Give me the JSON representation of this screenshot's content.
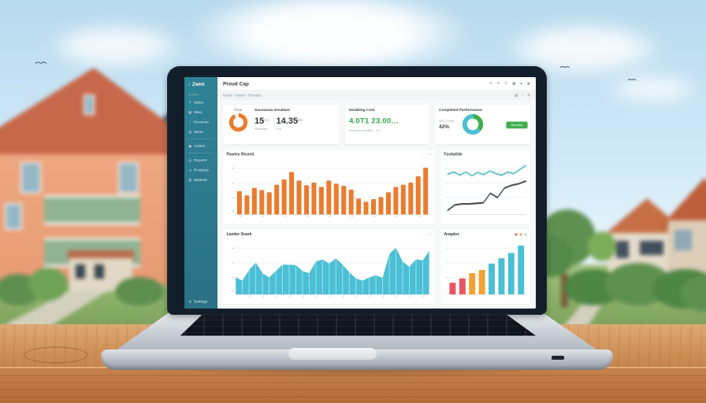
{
  "header": {
    "title": "Proud Cap",
    "icons": [
      {
        "name": "edit-icon",
        "glyph": "✎"
      },
      {
        "name": "refresh-icon",
        "glyph": "⟳"
      },
      {
        "name": "notifications-icon",
        "glyph": "✆"
      },
      {
        "name": "apps-icon",
        "glyph": "▣"
      },
      {
        "name": "status-dot-icon",
        "glyph": "●"
      },
      {
        "name": "profile-icon",
        "glyph": "◉"
      }
    ]
  },
  "breadcrumb": {
    "path": "Home › Panel › Threads",
    "icons": [
      {
        "name": "grid-view-icon",
        "glyph": "▦"
      },
      {
        "name": "history-icon",
        "glyph": "◔"
      },
      {
        "name": "sort-icon",
        "glyph": "⇅"
      }
    ]
  },
  "sidebar": {
    "brand": "Zwivt",
    "brand_icon_glyph": "⌂",
    "section_label": "MENU",
    "sections": [
      {
        "items": [
          {
            "label": "Sales",
            "icon": "pen-icon",
            "glyph": "✎"
          },
          {
            "label": "Sites",
            "icon": "grid-icon",
            "glyph": "▦"
          },
          {
            "label": "Revenue",
            "icon": "clock-icon",
            "glyph": "◔"
          },
          {
            "label": "Items",
            "icon": "layers-icon",
            "glyph": "▤"
          }
        ]
      },
      {
        "items": [
          {
            "label": "Orders",
            "icon": "box-icon",
            "glyph": "▣"
          }
        ]
      },
      {
        "items": [
          {
            "label": "Reports",
            "icon": "target-icon",
            "glyph": "◎"
          },
          {
            "label": "Products",
            "icon": "square-icon",
            "glyph": "◻"
          },
          {
            "label": "Markets",
            "icon": "chart-icon",
            "glyph": "▥"
          }
        ]
      }
    ],
    "bottom_item": {
      "label": "Settings",
      "icon": "gear-icon",
      "glyph": "⚙"
    }
  },
  "kpis": {
    "card1": {
      "donut_label": "Flour",
      "heading": "Saustanav Emaliant",
      "metrics": [
        {
          "value": "15",
          "suffix": "2:1",
          "label": "Finances"
        },
        {
          "value": "14.35",
          "suffix": "km",
          "label": "Y/A"
        }
      ]
    },
    "card2": {
      "heading": "Doubling Cost",
      "value": "4.0T1 23.00…",
      "subtext": "Finances median · 1/3"
    },
    "card3": {
      "heading": "Completed Performance",
      "small_label": "GET-COM",
      "value": "42%",
      "button_label": "Resume"
    }
  },
  "panels": {
    "revenue": {
      "title": "Pawles Recent",
      "actions": [
        {
          "glyph": "–"
        },
        {
          "glyph": "▫"
        },
        {
          "glyph": "≡"
        }
      ]
    },
    "trend": {
      "title": "Footwhile",
      "actions": []
    },
    "traffic": {
      "title": "Lander Snark",
      "actions": [
        {
          "glyph": "–"
        },
        {
          "glyph": "▫"
        },
        {
          "glyph": "≡"
        }
      ]
    },
    "growth": {
      "title": "Anaplex",
      "actions": [
        {
          "dot": "#e85561"
        },
        {
          "dot": "#f2a233"
        },
        {
          "dot": "#c2c8ce"
        }
      ]
    }
  },
  "colors": {
    "sidebar_teal": "#2e7c90",
    "accent_orange": "#eb7b2e",
    "accent_teal": "#4abfd5",
    "accent_green": "#35a84c",
    "accent_red": "#e85561",
    "accent_amber": "#f2a233",
    "line_dark": "#4a4f55",
    "page_bg": "#f7f8fa"
  },
  "chart_data": [
    {
      "id": "donut_flour",
      "type": "donut",
      "title": "Flour",
      "segments": [
        {
          "name": "filled",
          "value": 92,
          "color": "#eb7b2e"
        },
        {
          "name": "gap",
          "value": 8,
          "color": "#f2f3f5"
        }
      ]
    },
    {
      "id": "donut_completed",
      "type": "donut",
      "title": "Completed Performance",
      "segments": [
        {
          "name": "green",
          "value": 36,
          "color": "#3faf4e"
        },
        {
          "name": "teal",
          "value": 64,
          "color": "#4abfd5"
        }
      ]
    },
    {
      "id": "revenue_bars",
      "type": "bar",
      "title": "Pawles Recent",
      "color": "#eb7b2e",
      "ylim": [
        0,
        100
      ],
      "grid": true,
      "legend": "none",
      "values": [
        44,
        36,
        50,
        46,
        42,
        56,
        66,
        80,
        64,
        55,
        60,
        52,
        64,
        58,
        54,
        47,
        30,
        24,
        29,
        33,
        42,
        52,
        56,
        60,
        72,
        88
      ]
    },
    {
      "id": "trend_lines",
      "type": "line",
      "title": "Footwhile",
      "ylim": [
        0,
        100
      ],
      "grid": true,
      "legend": "none",
      "series": [
        {
          "name": "upper",
          "color": "#6ac4d4",
          "values": [
            76,
            80,
            74,
            80,
            73,
            79,
            75,
            82,
            77,
            74,
            80,
            77,
            85,
            92
          ]
        },
        {
          "name": "lower",
          "color": "#4a4f55",
          "values": [
            8,
            18,
            20,
            20,
            21,
            22,
            40,
            32,
            50,
            55,
            58,
            63
          ]
        }
      ]
    },
    {
      "id": "traffic_area",
      "type": "area",
      "title": "Lander Snark",
      "color": "#4abfd5",
      "ylim": [
        0,
        100
      ],
      "grid": true,
      "legend": "none",
      "values": [
        32,
        26,
        46,
        60,
        40,
        32,
        44,
        56,
        56,
        55,
        44,
        40,
        62,
        66,
        58,
        68,
        56,
        42,
        30,
        26,
        32,
        36,
        31,
        76,
        88,
        62,
        52,
        66,
        64,
        82
      ]
    },
    {
      "id": "growth_bars",
      "type": "bar",
      "title": "Anaplex",
      "ylim": [
        0,
        100
      ],
      "grid": true,
      "legend": "none",
      "values": [
        22,
        30,
        40,
        46,
        58,
        68,
        78,
        92
      ],
      "colors": [
        "#e85561",
        "#e85561",
        "#f2a233",
        "#f2a233",
        "#4abfd5",
        "#4abfd5",
        "#4abfd5",
        "#4abfd5"
      ]
    }
  ]
}
